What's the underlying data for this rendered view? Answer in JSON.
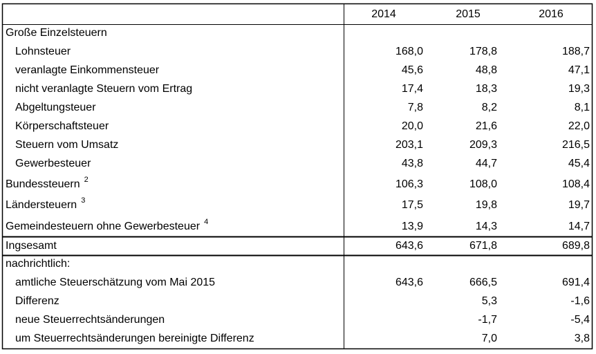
{
  "header": {
    "columns": [
      "2014",
      "2015",
      "2016"
    ]
  },
  "table": {
    "rows": [
      {
        "label": "Große Einzelsteuern",
        "rows": [
          {
            "label": "Lohnsteuer",
            "values": [
              "168,0",
              "178,8",
              "188,7"
            ]
          },
          {
            "label": "veranlagte Einkommensteuer",
            "values": [
              "45,6",
              "48,8",
              "47,1"
            ]
          },
          {
            "label": "nicht veranlagte Steuern vom Ertrag",
            "values": [
              "17,4",
              "18,3",
              "19,3"
            ]
          },
          {
            "label": "Abgeltungsteuer",
            "values": [
              "7,8",
              "8,2",
              "8,1"
            ]
          },
          {
            "label": "Körperschaftsteuer",
            "values": [
              "20,0",
              "21,6",
              "22,0"
            ]
          },
          {
            "label": "Steuern vom Umsatz",
            "values": [
              "203,1",
              "209,3",
              "216,5"
            ]
          },
          {
            "label": "Gewerbesteuer",
            "values": [
              "43,8",
              "44,7",
              "45,4"
            ]
          }
        ]
      },
      {
        "label": "Bundessteuern",
        "note": "2",
        "values": [
          "106,3",
          "108,0",
          "108,4"
        ]
      },
      {
        "label": "Ländersteuern",
        "note": "3",
        "values": [
          "17,5",
          "19,8",
          "19,7"
        ]
      },
      {
        "label": "Gemeindesteuern ohne Gewerbesteuer",
        "note": "4",
        "values": [
          "13,9",
          "14,3",
          "14,7"
        ]
      },
      {
        "label": "Ingsesamt",
        "values": [
          "643,6",
          "671,8",
          "689,8"
        ]
      },
      {
        "label": "nachrichtlich:",
        "rows": [
          {
            "label": "amtliche Steuerschätzung vom Mai 2015",
            "values": [
              "643,6",
              "666,5",
              "691,4"
            ]
          },
          {
            "label": "Differenz",
            "values": [
              null,
              "5,3",
              "-1,6"
            ]
          },
          {
            "label": "neue Steuerrechtsänderungen",
            "values": [
              null,
              "-1,7",
              "-5,4"
            ]
          },
          {
            "label": "um Steuerrechtsänderungen bereinigte Differenz",
            "values": [
              null,
              "7,0",
              "3,8"
            ]
          }
        ]
      }
    ]
  }
}
